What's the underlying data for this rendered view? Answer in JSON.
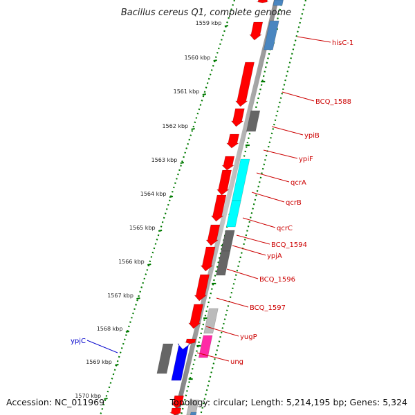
{
  "title": "Bacillus cereus Q1, complete genome",
  "footer": {
    "accession": "Accession: NC_011969",
    "topology": "Topology: circular; Length: 5,214,195 bp; Genes: 5,324"
  },
  "ruler": {
    "ticks": [
      "1559 kbp",
      "1560 kbp",
      "1561 kbp",
      "1562 kbp",
      "1563 kbp",
      "1564 kbp",
      "1565 kbp",
      "1566 kbp",
      "1567 kbp",
      "1568 kbp",
      "1569 kbp",
      "1570 kbp"
    ]
  },
  "colors": {
    "forward_strand": "#ff0000",
    "reverse_cog_gray": "#666666",
    "reverse_cog_cyan": "#00ffff",
    "reverse_cog_steelblue": "#4a86c0",
    "reverse_cog_blue": "#0000ff",
    "reverse_cog_lightgray": "#bbbbbb",
    "reverse_cog_pink": "#ff2aa6",
    "label_default": "#cc0000",
    "label_highlight": "#0000cc",
    "ruler_green": "#007a00"
  },
  "genes": [
    {
      "name": "hisC-1",
      "color": "#cc0000"
    },
    {
      "name": "BCQ_1588",
      "color": "#cc0000"
    },
    {
      "name": "ypiB",
      "color": "#cc0000"
    },
    {
      "name": "ypiF",
      "color": "#cc0000"
    },
    {
      "name": "qcrA",
      "color": "#cc0000"
    },
    {
      "name": "qcrB",
      "color": "#cc0000"
    },
    {
      "name": "qcrC",
      "color": "#cc0000"
    },
    {
      "name": "BCQ_1594",
      "color": "#cc0000"
    },
    {
      "name": "ypjA",
      "color": "#cc0000"
    },
    {
      "name": "BCQ_1596",
      "color": "#cc0000"
    },
    {
      "name": "BCQ_1597",
      "color": "#cc0000"
    },
    {
      "name": "yugP",
      "color": "#cc0000"
    },
    {
      "name": "ung",
      "color": "#cc0000"
    },
    {
      "name": "ypjC",
      "color": "#0000cc"
    }
  ]
}
